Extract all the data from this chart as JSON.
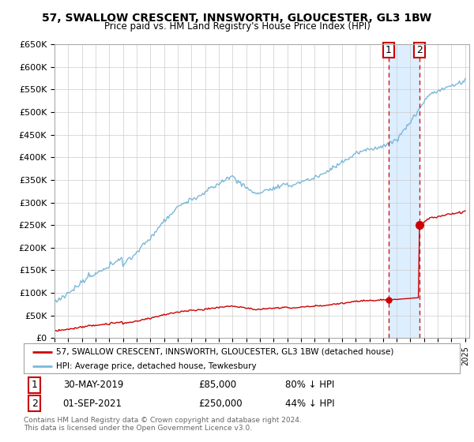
{
  "title": "57, SWALLOW CRESCENT, INNSWORTH, GLOUCESTER, GL3 1BW",
  "subtitle": "Price paid vs. HM Land Registry's House Price Index (HPI)",
  "ylim": [
    0,
    650000
  ],
  "yticks": [
    0,
    50000,
    100000,
    150000,
    200000,
    250000,
    300000,
    350000,
    400000,
    450000,
    500000,
    550000,
    600000,
    650000
  ],
  "ytick_labels": [
    "£0",
    "£50K",
    "£100K",
    "£150K",
    "£200K",
    "£250K",
    "£300K",
    "£350K",
    "£400K",
    "£450K",
    "£500K",
    "£550K",
    "£600K",
    "£650K"
  ],
  "hpi_color": "#7ab8d9",
  "price_color": "#cc0000",
  "vline_color": "#cc0000",
  "shade_color": "#ddeeff",
  "sale1_date": "30-MAY-2019",
  "sale1_price": "£85,000",
  "sale1_pct": "80% ↓ HPI",
  "sale1_year": 2019.41,
  "sale1_value": 85000,
  "sale2_date": "01-SEP-2021",
  "sale2_price": "£250,000",
  "sale2_pct": "44% ↓ HPI",
  "sale2_year": 2021.67,
  "sale2_value": 250000,
  "legend_label1": "57, SWALLOW CRESCENT, INNSWORTH, GLOUCESTER, GL3 1BW (detached house)",
  "legend_label2": "HPI: Average price, detached house, Tewkesbury",
  "footer": "Contains HM Land Registry data © Crown copyright and database right 2024.\nThis data is licensed under the Open Government Licence v3.0.",
  "background_color": "#ffffff",
  "grid_color": "#cccccc"
}
